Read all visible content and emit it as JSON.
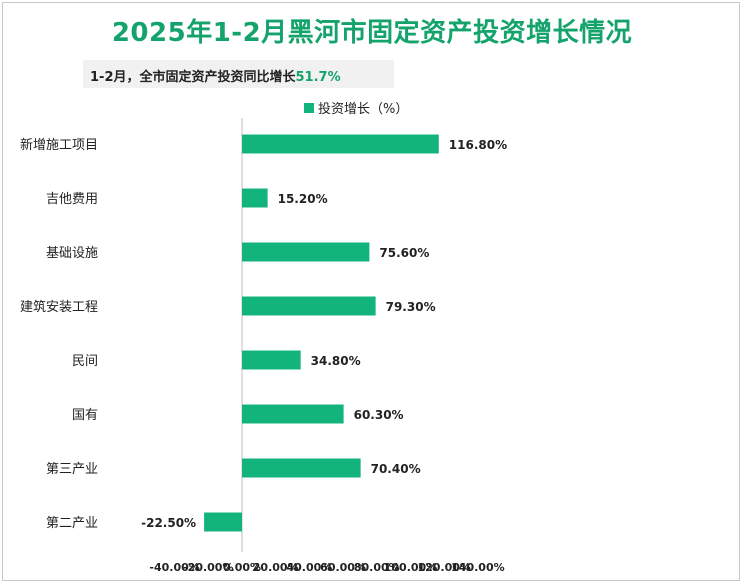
{
  "page": {
    "title": "2025年1-2月黑河市固定资产投资增长情况",
    "subtitle_prefix": "1-2月，全市固定资产投资同比增长",
    "subtitle_value": "51.7%"
  },
  "chart_data": {
    "type": "bar",
    "orientation": "horizontal",
    "title": "",
    "categories": [
      "新增施工项目",
      "吉他费用",
      "基础设施",
      "建筑安装工程",
      "民间",
      "国有",
      "第三产业",
      "第二产业"
    ],
    "series": [
      {
        "name": "投资增长（%）",
        "values": [
          116.8,
          15.2,
          75.6,
          79.3,
          34.8,
          60.3,
          70.4,
          -22.5
        ]
      }
    ],
    "data_labels": [
      "116.80%",
      "15.20%",
      "75.60%",
      "79.30%",
      "34.80%",
      "60.30%",
      "70.40%",
      "-22.50%"
    ],
    "xlim": [
      -40,
      140
    ],
    "x_ticks": [
      -40,
      -20,
      0,
      20,
      40,
      60,
      80,
      100,
      120,
      140
    ],
    "x_tick_labels": [
      "-40.00%",
      "-20.00%",
      "0.00%",
      "20.00%",
      "40.00%",
      "60.00%",
      "80.00%",
      "100.00%",
      "120.00%",
      "140.00%"
    ],
    "legend_position": "top",
    "grid": false,
    "bar_color": "#13b47c"
  }
}
